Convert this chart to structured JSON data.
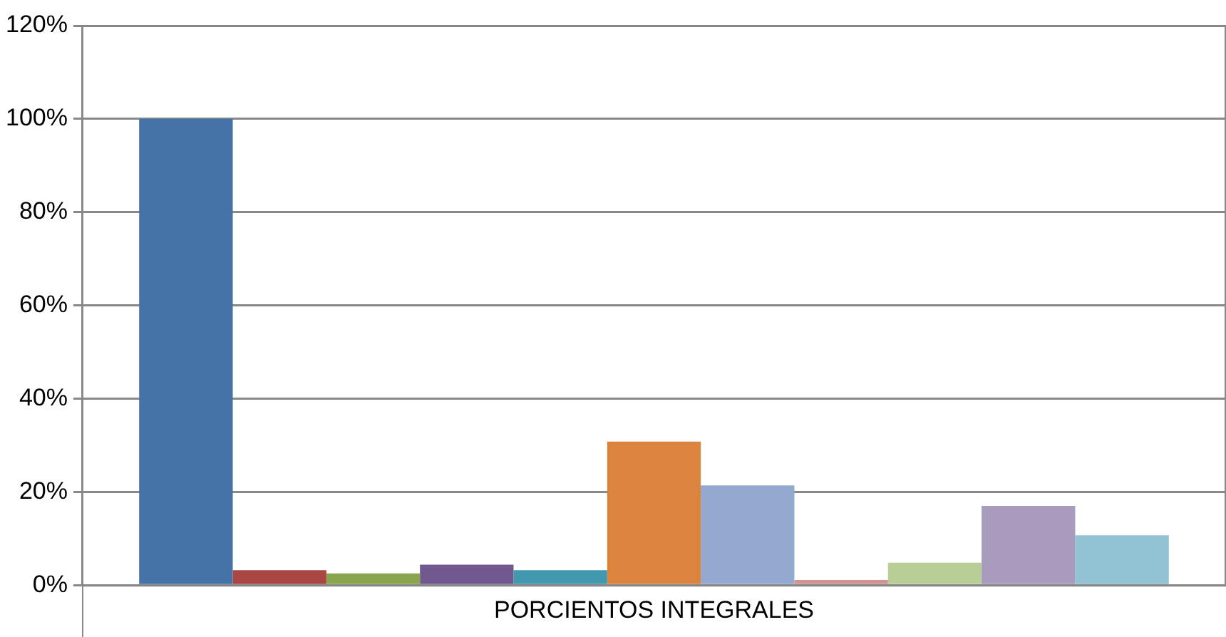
{
  "chart_data": {
    "type": "bar",
    "categories": [
      "PORCIENTOS INTEGRALES"
    ],
    "series": [
      {
        "color": "#4572a7",
        "values": [
          100
        ]
      },
      {
        "color": "#aa4643",
        "values": [
          3.2
        ]
      },
      {
        "color": "#89a54e",
        "values": [
          2.5
        ]
      },
      {
        "color": "#71588f",
        "values": [
          4.4
        ]
      },
      {
        "color": "#4198af",
        "values": [
          3.2
        ]
      },
      {
        "color": "#db843d",
        "values": [
          30.8
        ]
      },
      {
        "color": "#93a9cf",
        "values": [
          21.4
        ]
      },
      {
        "color": "#d19392",
        "values": [
          1.1
        ]
      },
      {
        "color": "#b9cd96",
        "values": [
          4.8
        ]
      },
      {
        "color": "#a99bbd",
        "values": [
          17
        ]
      },
      {
        "color": "#91c3d5",
        "values": [
          10.7
        ]
      }
    ],
    "ylim": [
      0,
      120
    ],
    "yticks": [
      {
        "value": 0,
        "label": "0%"
      },
      {
        "value": 20,
        "label": "20%"
      },
      {
        "value": 40,
        "label": "40%"
      },
      {
        "value": 60,
        "label": "60%"
      },
      {
        "value": 80,
        "label": "80%"
      },
      {
        "value": 100,
        "label": "100%"
      },
      {
        "value": 120,
        "label": "120%"
      }
    ],
    "grid": "y",
    "legend": false
  }
}
